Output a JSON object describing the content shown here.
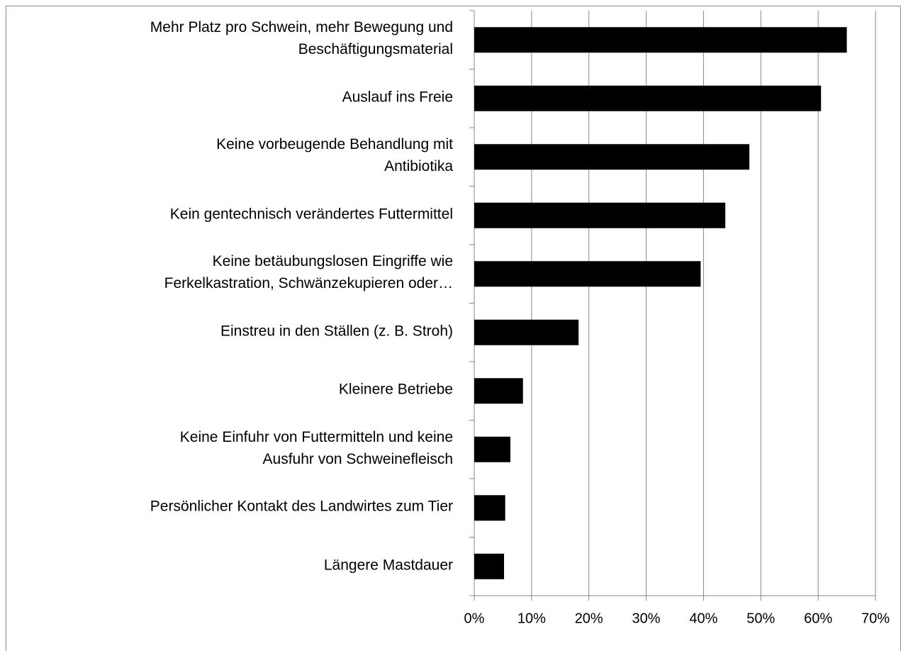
{
  "chart_data": {
    "type": "barh",
    "categories": [
      "Mehr Platz pro Schwein, mehr Bewegung und\nBeschäftigungsmaterial",
      "Auslauf ins Freie",
      "Keine vorbeugende Behandlung mit\nAntibiotika",
      "Kein gentechnisch verändertes Futtermittel",
      "Keine betäubungslosen  Eingriffe wie\nFerkelkastration, Schwänzekupieren oder…",
      "Einstreu in den Ställen (z. B. Stroh)",
      "Kleinere Betriebe",
      "Keine Einfuhr von Futtermitteln und keine\nAusfuhr von Schweinefleisch",
      "Persönlicher Kontakt des Landwirtes zum Tier",
      "Längere Mastdauer"
    ],
    "values": [
      65,
      60.5,
      48,
      43.8,
      39.5,
      18.2,
      8.5,
      6.3,
      5.4,
      5.2
    ],
    "color": "#000000",
    "xlim": [
      0,
      70
    ],
    "xticks": [
      {
        "value": 0,
        "label": "0%"
      },
      {
        "value": 10,
        "label": "10%"
      },
      {
        "value": 20,
        "label": "20%"
      },
      {
        "value": 30,
        "label": "30%"
      },
      {
        "value": 40,
        "label": "40%"
      },
      {
        "value": 50,
        "label": "50%"
      },
      {
        "value": 60,
        "label": "60%"
      },
      {
        "value": 70,
        "label": "70%"
      }
    ],
    "grid": true
  }
}
